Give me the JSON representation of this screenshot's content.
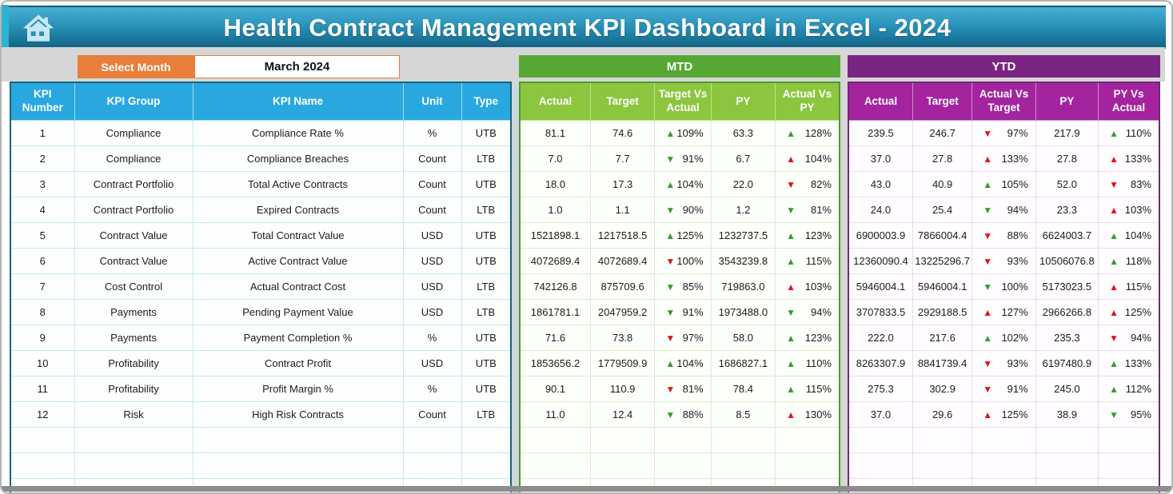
{
  "header": {
    "title": "Health Contract Management KPI Dashboard in Excel - 2024"
  },
  "controls": {
    "select_month_label": "Select Month",
    "selected_month": "March 2024"
  },
  "sections": {
    "mtd_label": "MTD",
    "ytd_label": "YTD"
  },
  "kpi_table": {
    "headers": [
      "KPI Number",
      "KPI Group",
      "KPI Name",
      "Unit",
      "Type"
    ]
  },
  "mtd_table": {
    "headers": [
      "Actual",
      "Target",
      "Target Vs Actual",
      "PY",
      "Actual Vs PY"
    ]
  },
  "ytd_table": {
    "headers": [
      "Actual",
      "Target",
      "Actual Vs Target",
      "PY",
      "PY Vs Actual"
    ]
  },
  "empty_rows": 3,
  "colors": {
    "banner_blue_top": "#4aaed2",
    "banner_blue_bottom": "#135f7d",
    "home_tab_teal": "#2bb3d2",
    "kpi_header_blue": "#29a8e0",
    "kpi_border": "#16657f",
    "mtd_banner_green": "#56a733",
    "mtd_header_green": "#8cc63f",
    "mtd_border": "#4d9a30",
    "ytd_banner_purple": "#7b2483",
    "ytd_header_magenta": "#a3249e",
    "ytd_border": "#6e2a78",
    "select_month_orange": "#e87e3a",
    "arrow_green": "#33a02c",
    "arrow_red": "#e3131b",
    "band_gray": "#d6d6d6",
    "bottom_bar_gray": "#8c8c8c"
  },
  "rows": [
    {
      "num": "1",
      "group": "Compliance",
      "name": "Compliance Rate %",
      "unit": "%",
      "type": "UTB",
      "mtd": {
        "actual": "81.1",
        "target": "74.6",
        "tva": {
          "dir": "up",
          "color": "green",
          "value": "109%"
        },
        "py": "63.3",
        "avpy": {
          "dir": "up",
          "color": "green",
          "value": "128%"
        }
      },
      "ytd": {
        "actual": "239.5",
        "target": "246.7",
        "avt": {
          "dir": "down",
          "color": "red",
          "value": "97%"
        },
        "py": "217.9",
        "pyva": {
          "dir": "up",
          "color": "green",
          "value": "110%"
        }
      }
    },
    {
      "num": "2",
      "group": "Compliance",
      "name": "Compliance Breaches",
      "unit": "Count",
      "type": "LTB",
      "mtd": {
        "actual": "7.0",
        "target": "7.7",
        "tva": {
          "dir": "down",
          "color": "green",
          "value": "91%"
        },
        "py": "6.7",
        "avpy": {
          "dir": "up",
          "color": "red",
          "value": "104%"
        }
      },
      "ytd": {
        "actual": "37.0",
        "target": "27.8",
        "avt": {
          "dir": "up",
          "color": "red",
          "value": "133%"
        },
        "py": "27.8",
        "pyva": {
          "dir": "up",
          "color": "red",
          "value": "133%"
        }
      }
    },
    {
      "num": "3",
      "group": "Contract Portfolio",
      "name": "Total Active Contracts",
      "unit": "Count",
      "type": "UTB",
      "mtd": {
        "actual": "18.0",
        "target": "17.3",
        "tva": {
          "dir": "up",
          "color": "green",
          "value": "104%"
        },
        "py": "22.0",
        "avpy": {
          "dir": "down",
          "color": "red",
          "value": "82%"
        }
      },
      "ytd": {
        "actual": "43.0",
        "target": "40.9",
        "avt": {
          "dir": "up",
          "color": "green",
          "value": "105%"
        },
        "py": "52.0",
        "pyva": {
          "dir": "down",
          "color": "red",
          "value": "83%"
        }
      }
    },
    {
      "num": "4",
      "group": "Contract Portfolio",
      "name": "Expired Contracts",
      "unit": "Count",
      "type": "LTB",
      "mtd": {
        "actual": "1.0",
        "target": "1.1",
        "tva": {
          "dir": "down",
          "color": "green",
          "value": "90%"
        },
        "py": "1.2",
        "avpy": {
          "dir": "down",
          "color": "green",
          "value": "81%"
        }
      },
      "ytd": {
        "actual": "24.0",
        "target": "25.4",
        "avt": {
          "dir": "down",
          "color": "green",
          "value": "94%"
        },
        "py": "23.3",
        "pyva": {
          "dir": "up",
          "color": "red",
          "value": "103%"
        }
      }
    },
    {
      "num": "5",
      "group": "Contract Value",
      "name": "Total Contract Value",
      "unit": "USD",
      "type": "UTB",
      "mtd": {
        "actual": "1521898.1",
        "target": "1217518.5",
        "tva": {
          "dir": "up",
          "color": "green",
          "value": "125%"
        },
        "py": "1232737.5",
        "avpy": {
          "dir": "up",
          "color": "green",
          "value": "123%"
        }
      },
      "ytd": {
        "actual": "6900003.9",
        "target": "7866004.4",
        "avt": {
          "dir": "down",
          "color": "red",
          "value": "88%"
        },
        "py": "6624003.7",
        "pyva": {
          "dir": "up",
          "color": "green",
          "value": "104%"
        }
      }
    },
    {
      "num": "6",
      "group": "Contract Value",
      "name": "Active Contract Value",
      "unit": "USD",
      "type": "UTB",
      "mtd": {
        "actual": "4072689.4",
        "target": "4072689.4",
        "tva": {
          "dir": "down",
          "color": "red",
          "value": "100%"
        },
        "py": "3543239.8",
        "avpy": {
          "dir": "up",
          "color": "green",
          "value": "115%"
        }
      },
      "ytd": {
        "actual": "12360090.4",
        "target": "13225296.7",
        "avt": {
          "dir": "down",
          "color": "red",
          "value": "93%"
        },
        "py": "10506076.8",
        "pyva": {
          "dir": "up",
          "color": "green",
          "value": "118%"
        }
      }
    },
    {
      "num": "7",
      "group": "Cost Control",
      "name": "Actual Contract Cost",
      "unit": "USD",
      "type": "LTB",
      "mtd": {
        "actual": "742126.8",
        "target": "875709.6",
        "tva": {
          "dir": "down",
          "color": "green",
          "value": "85%"
        },
        "py": "719863.0",
        "avpy": {
          "dir": "up",
          "color": "red",
          "value": "103%"
        }
      },
      "ytd": {
        "actual": "5946004.1",
        "target": "5946004.1",
        "avt": {
          "dir": "down",
          "color": "green",
          "value": "100%"
        },
        "py": "5173023.5",
        "pyva": {
          "dir": "up",
          "color": "red",
          "value": "115%"
        }
      }
    },
    {
      "num": "8",
      "group": "Payments",
      "name": "Pending Payment Value",
      "unit": "USD",
      "type": "LTB",
      "mtd": {
        "actual": "1861781.1",
        "target": "2047959.2",
        "tva": {
          "dir": "down",
          "color": "green",
          "value": "91%"
        },
        "py": "1973488.0",
        "avpy": {
          "dir": "down",
          "color": "green",
          "value": "94%"
        }
      },
      "ytd": {
        "actual": "3707833.5",
        "target": "2929188.5",
        "avt": {
          "dir": "up",
          "color": "red",
          "value": "127%"
        },
        "py": "2966266.8",
        "pyva": {
          "dir": "up",
          "color": "red",
          "value": "125%"
        }
      }
    },
    {
      "num": "9",
      "group": "Payments",
      "name": "Payment Completion %",
      "unit": "%",
      "type": "UTB",
      "mtd": {
        "actual": "71.6",
        "target": "73.8",
        "tva": {
          "dir": "down",
          "color": "red",
          "value": "97%"
        },
        "py": "58.0",
        "avpy": {
          "dir": "up",
          "color": "green",
          "value": "123%"
        }
      },
      "ytd": {
        "actual": "222.0",
        "target": "217.6",
        "avt": {
          "dir": "up",
          "color": "green",
          "value": "102%"
        },
        "py": "235.3",
        "pyva": {
          "dir": "down",
          "color": "red",
          "value": "94%"
        }
      }
    },
    {
      "num": "10",
      "group": "Profitability",
      "name": "Contract Profit",
      "unit": "USD",
      "type": "UTB",
      "mtd": {
        "actual": "1853656.2",
        "target": "1779509.9",
        "tva": {
          "dir": "up",
          "color": "green",
          "value": "104%"
        },
        "py": "1686827.1",
        "avpy": {
          "dir": "up",
          "color": "green",
          "value": "110%"
        }
      },
      "ytd": {
        "actual": "8263307.9",
        "target": "8841739.4",
        "avt": {
          "dir": "down",
          "color": "red",
          "value": "93%"
        },
        "py": "6197480.9",
        "pyva": {
          "dir": "up",
          "color": "green",
          "value": "133%"
        }
      }
    },
    {
      "num": "11",
      "group": "Profitability",
      "name": "Profit Margin %",
      "unit": "%",
      "type": "UTB",
      "mtd": {
        "actual": "90.1",
        "target": "110.9",
        "tva": {
          "dir": "down",
          "color": "red",
          "value": "81%"
        },
        "py": "78.4",
        "avpy": {
          "dir": "up",
          "color": "green",
          "value": "115%"
        }
      },
      "ytd": {
        "actual": "275.3",
        "target": "302.9",
        "avt": {
          "dir": "down",
          "color": "red",
          "value": "91%"
        },
        "py": "245.0",
        "pyva": {
          "dir": "up",
          "color": "green",
          "value": "112%"
        }
      }
    },
    {
      "num": "12",
      "group": "Risk",
      "name": "High Risk Contracts",
      "unit": "Count",
      "type": "LTB",
      "mtd": {
        "actual": "11.0",
        "target": "12.4",
        "tva": {
          "dir": "down",
          "color": "green",
          "value": "88%"
        },
        "py": "8.5",
        "avpy": {
          "dir": "up",
          "color": "red",
          "value": "130%"
        }
      },
      "ytd": {
        "actual": "37.0",
        "target": "29.6",
        "avt": {
          "dir": "up",
          "color": "red",
          "value": "125%"
        },
        "py": "38.9",
        "pyva": {
          "dir": "down",
          "color": "green",
          "value": "95%"
        }
      }
    }
  ]
}
